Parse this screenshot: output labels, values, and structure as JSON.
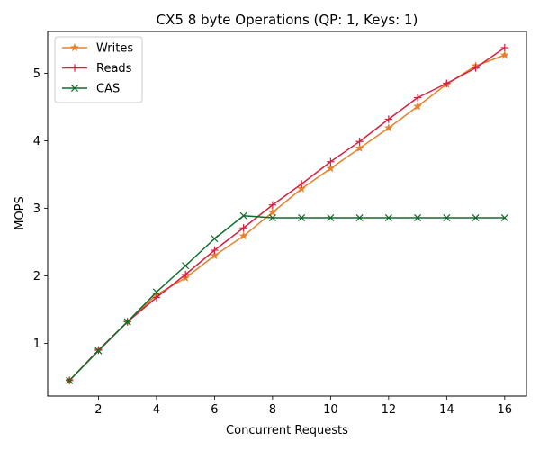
{
  "chart_data": {
    "type": "line",
    "title": "CX5 8 byte Operations (QP: 1, Keys: 1)",
    "xlabel": "Concurrent Requests",
    "ylabel": "MOPS",
    "xlim": [
      0.25,
      16.75
    ],
    "ylim": [
      0.22,
      5.62
    ],
    "xticks": [
      2,
      4,
      6,
      8,
      10,
      12,
      14,
      16
    ],
    "yticks": [
      1,
      2,
      3,
      4,
      5
    ],
    "grid": false,
    "legend_position": "upper left",
    "x": [
      1,
      2,
      3,
      4,
      5,
      6,
      7,
      8,
      9,
      10,
      11,
      12,
      13,
      14,
      15,
      16
    ],
    "series": [
      {
        "name": "Writes",
        "color": "#e6822e",
        "marker": "star",
        "values": [
          0.45,
          0.9,
          1.32,
          1.72,
          1.97,
          2.3,
          2.59,
          2.94,
          3.29,
          3.59,
          3.89,
          4.19,
          4.51,
          4.84,
          5.11,
          5.27
        ]
      },
      {
        "name": "Reads",
        "color": "#d62040",
        "marker": "plus",
        "values": [
          0.45,
          0.9,
          1.32,
          1.68,
          2.02,
          2.38,
          2.71,
          3.05,
          3.36,
          3.69,
          3.99,
          4.32,
          4.64,
          4.85,
          5.08,
          5.38
        ]
      },
      {
        "name": "CAS",
        "color": "#0a6e2a",
        "marker": "x",
        "values": [
          0.45,
          0.89,
          1.32,
          1.76,
          2.15,
          2.55,
          2.89,
          2.86,
          2.86,
          2.86,
          2.86,
          2.86,
          2.86,
          2.86,
          2.86,
          2.86
        ]
      }
    ]
  }
}
